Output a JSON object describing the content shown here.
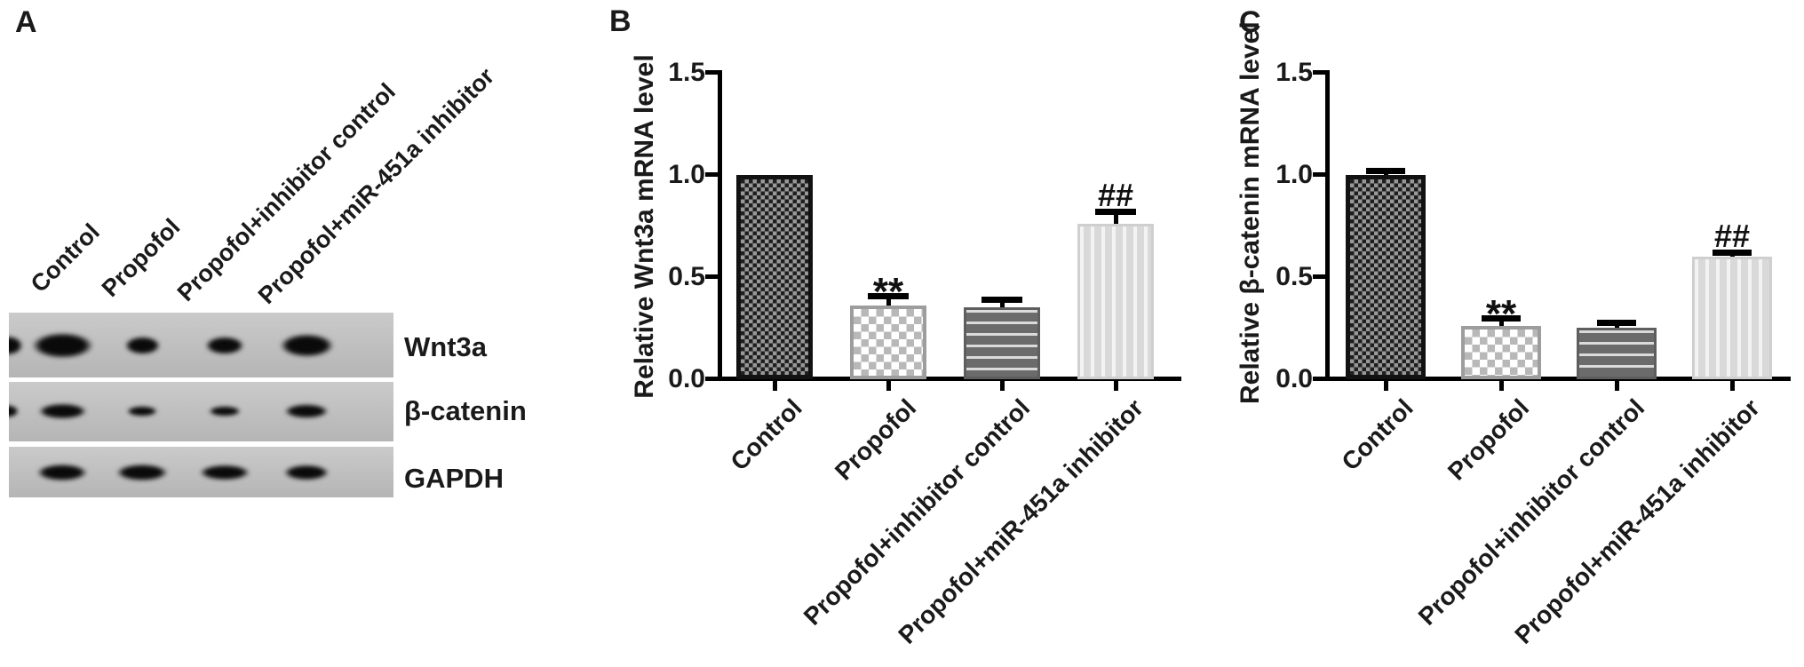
{
  "figure_labels": {
    "panel_a": "A",
    "panel_b": "B",
    "panel_c": "C"
  },
  "panel_a": {
    "lane_labels": [
      "Control",
      "Propofol",
      "Propofol+inhibitor control",
      "Propofol+miR-451a inhibitor"
    ],
    "row_labels": [
      "Wnt3a",
      "β-catenin",
      "GAPDH"
    ],
    "bands": [
      {
        "protein": "Wnt3a",
        "sizes": [
          [
            95,
            40
          ],
          [
            55,
            28
          ],
          [
            60,
            28
          ],
          [
            83,
            36
          ]
        ]
      },
      {
        "protein": "β-catenin",
        "sizes": [
          [
            75,
            24
          ],
          [
            48,
            16
          ],
          [
            50,
            16
          ],
          [
            68,
            22
          ]
        ]
      },
      {
        "protein": "GAPDH",
        "sizes": [
          [
            78,
            26
          ],
          [
            80,
            26
          ],
          [
            78,
            24
          ],
          [
            70,
            24
          ]
        ]
      }
    ]
  },
  "chart_data": [
    {
      "type": "bar",
      "panel": "B",
      "title": "",
      "xlabel": "",
      "ylabel": "Relative Wnt3a mRNA level",
      "categories": [
        "Control",
        "Propofol",
        "Propofol+inhibitor control",
        "Propofol+miR-451a inhibitor"
      ],
      "values": [
        1.0,
        0.36,
        0.35,
        0.76
      ],
      "errors": [
        0,
        0.05,
        0.04,
        0.06
      ],
      "annotations": [
        "",
        "**",
        "",
        "##"
      ],
      "yticks": [
        0.0,
        0.5,
        1.0,
        1.5
      ],
      "ytick_labels": [
        "0.0",
        "0.5",
        "1.0",
        "1.5"
      ],
      "ylim": [
        0,
        1.5
      ],
      "grid": false,
      "legend": "none",
      "bar_patterns": [
        "dark-checker",
        "light-checker",
        "horizontal-stripes",
        "vertical-stripes"
      ]
    },
    {
      "type": "bar",
      "panel": "C",
      "title": "",
      "xlabel": "",
      "ylabel": "Relative β-catenin mRNA level",
      "categories": [
        "Control",
        "Propofol",
        "Propofol+inhibitor control",
        "Propofol+miR-451a inhibitor"
      ],
      "values": [
        1.0,
        0.26,
        0.25,
        0.6
      ],
      "errors": [
        0.02,
        0.04,
        0.03,
        0.02
      ],
      "annotations": [
        "",
        "**",
        "",
        "##"
      ],
      "yticks": [
        0.0,
        0.5,
        1.0,
        1.5
      ],
      "ytick_labels": [
        "0.0",
        "0.5",
        "1.0",
        "1.5"
      ],
      "ylim": [
        0,
        1.5
      ],
      "grid": false,
      "legend": "none",
      "bar_patterns": [
        "dark-checker",
        "light-checker",
        "horizontal-stripes",
        "vertical-stripes"
      ]
    }
  ]
}
